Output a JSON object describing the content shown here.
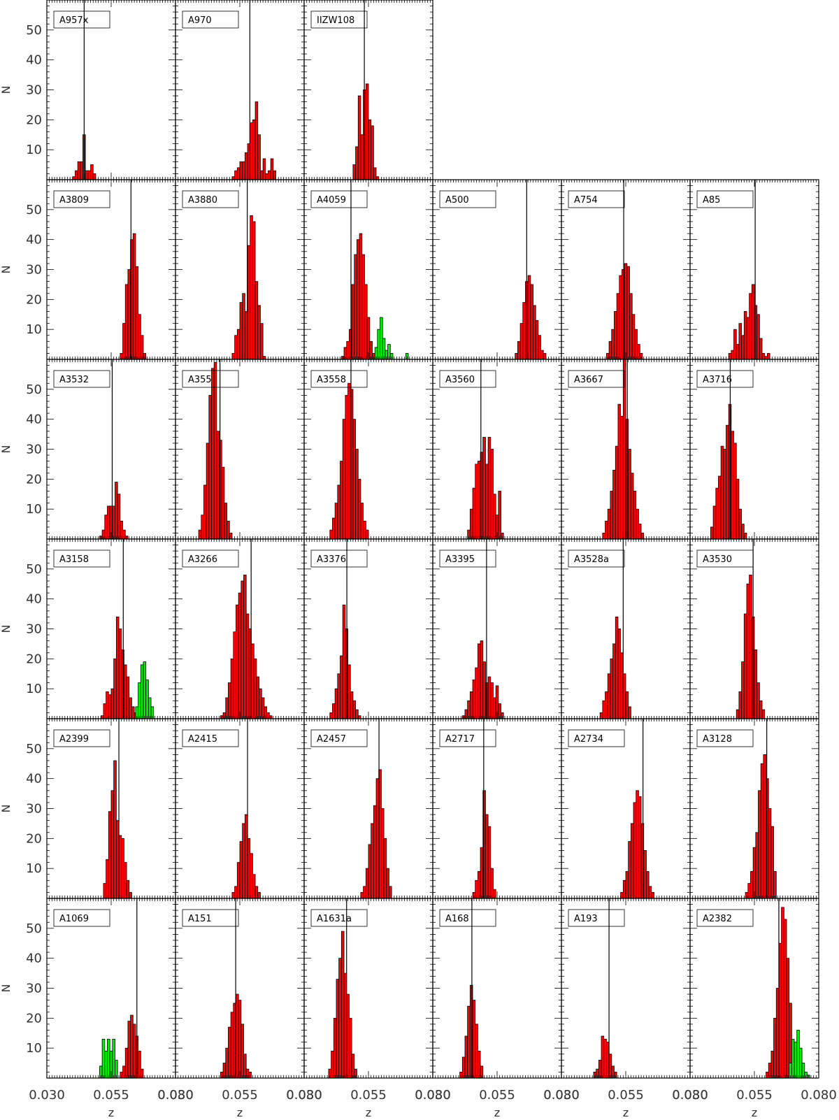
{
  "chart_data": {
    "type": "bar",
    "layout": "grid of histogram panels, 6 columns x 6 rows, shared axes",
    "xlabel": "z",
    "ylabel": "N",
    "xlim": [
      0.03,
      0.08
    ],
    "ylim": [
      0,
      60
    ],
    "bin_width": 0.001,
    "xticks": [
      0.03,
      0.055,
      0.08
    ],
    "yticks": [
      10,
      20,
      30,
      40,
      50
    ],
    "colors": {
      "main": "#ff0000",
      "secondary": "#00ee00",
      "edge": "#000000",
      "frame": "#000000"
    },
    "panels": [
      {
        "name": "A957x",
        "row": 0,
        "col": 0,
        "mean": 0.0445,
        "main": {
          "start": 0.04,
          "counts": [
            1,
            3,
            6,
            6,
            15,
            3,
            3,
            5,
            2
          ]
        }
      },
      {
        "name": "A970",
        "row": 0,
        "col": 1,
        "mean": 0.0589,
        "main": {
          "start": 0.052,
          "counts": [
            1,
            3,
            4,
            6,
            6,
            9,
            12,
            19,
            20,
            26,
            15,
            3,
            7,
            2,
            3,
            7,
            3
          ]
        }
      },
      {
        "name": "IIZW108",
        "row": 0,
        "col": 2,
        "mean": 0.0534,
        "main": {
          "start": 0.049,
          "counts": [
            5,
            11,
            28,
            15,
            30,
            32,
            20,
            18,
            4,
            1
          ]
        }
      },
      {
        "name": "A3809",
        "row": 1,
        "col": 0,
        "mean": 0.0627,
        "main": {
          "start": 0.0585,
          "counts": [
            2,
            12,
            25,
            30,
            40,
            42,
            31,
            15,
            8,
            2
          ]
        }
      },
      {
        "name": "A3880",
        "row": 1,
        "col": 1,
        "mean": 0.0579,
        "main": {
          "start": 0.052,
          "counts": [
            2,
            8,
            10,
            19,
            22,
            16,
            38,
            48,
            46,
            26,
            18,
            12,
            1
          ]
        }
      },
      {
        "name": "A4059",
        "row": 1,
        "col": 2,
        "mean": 0.0482,
        "main": {
          "start": 0.0445,
          "counts": [
            1,
            4,
            6,
            10,
            25,
            35,
            40,
            42,
            35,
            25,
            14,
            6,
            2
          ]
        },
        "secondary": {
          "start": 0.0575,
          "counts": [
            4,
            10,
            14,
            7,
            3,
            5,
            2,
            0,
            0,
            0,
            0,
            0,
            2
          ]
        }
      },
      {
        "name": "A500",
        "row": 1,
        "col": 3,
        "mean": 0.0665,
        "main": {
          "start": 0.062,
          "counts": [
            2,
            6,
            12,
            19,
            26,
            28,
            25,
            18,
            13,
            8,
            3,
            2
          ]
        }
      },
      {
        "name": "A754",
        "row": 1,
        "col": 4,
        "mean": 0.0542,
        "main": {
          "start": 0.0475,
          "counts": [
            2,
            6,
            10,
            16,
            22,
            28,
            30,
            32,
            31,
            22,
            15,
            10,
            5,
            2
          ]
        }
      },
      {
        "name": "A85",
        "row": 1,
        "col": 5,
        "mean": 0.0553,
        "main": {
          "start": 0.045,
          "counts": [
            2,
            3,
            10,
            5,
            12,
            8,
            16,
            14,
            22,
            25,
            18,
            15,
            7,
            2,
            1,
            2
          ]
        }
      }
    ],
    "panels_more": [
      {
        "name": "A3532",
        "row": 2,
        "col": 0,
        "mean": 0.0554,
        "main": {
          "start": 0.0505,
          "counts": [
            1,
            3,
            8,
            11,
            11,
            11,
            19,
            15,
            6,
            3,
            1
          ]
        }
      },
      {
        "name": "A3558",
        "row": 2,
        "col": 2,
        "mean": 0.0482,
        "main": {
          "start": 0.04,
          "counts": [
            3,
            7,
            12,
            18,
            26,
            40,
            48,
            52,
            50,
            40,
            30,
            20,
            12,
            6,
            3
          ]
        }
      },
      {
        "name": "A3560",
        "row": 2,
        "col": 3,
        "mean": 0.0487,
        "main": {
          "start": 0.0435,
          "counts": [
            3,
            10,
            17,
            25,
            26,
            29,
            34,
            25,
            34,
            30,
            15,
            8,
            16,
            2
          ]
        }
      },
      {
        "name": "A3667",
        "row": 2,
        "col": 4,
        "mean": 0.0556,
        "main": {
          "start": 0.046,
          "counts": [
            2,
            6,
            10,
            16,
            23,
            31,
            45,
            41,
            62,
            40,
            30,
            22,
            16,
            10,
            5,
            2
          ]
        }
      },
      {
        "name": "A3716",
        "row": 2,
        "col": 5,
        "mean": 0.0456,
        "main": {
          "start": 0.038,
          "counts": [
            4,
            11,
            17,
            21,
            31,
            30,
            38,
            45,
            36,
            32,
            20,
            10,
            5,
            2
          ]
        }
      },
      {
        "name": "A3158",
        "row": 3,
        "col": 0,
        "mean": 0.0597,
        "main": {
          "start": 0.051,
          "counts": [
            1,
            5,
            9,
            8,
            10,
            20,
            34,
            30,
            23,
            18,
            14,
            7,
            4,
            2
          ]
        },
        "secondary": {
          "start": 0.0645,
          "counts": [
            4,
            12,
            18,
            19,
            13,
            7,
            4
          ]
        }
      },
      {
        "name": "A3266",
        "row": 3,
        "col": 1,
        "mean": 0.0594,
        "main": {
          "start": 0.0475,
          "counts": [
            1,
            2,
            7,
            12,
            20,
            29,
            38,
            42,
            46,
            48,
            35,
            30,
            25,
            20,
            14,
            10,
            7,
            4,
            2,
            1
          ]
        }
      },
      {
        "name": "A3376",
        "row": 3,
        "col": 2,
        "mean": 0.0466,
        "main": {
          "start": 0.04,
          "counts": [
            2,
            5,
            10,
            15,
            21,
            38,
            30,
            18,
            9,
            6,
            3,
            1
          ]
        }
      },
      {
        "name": "A3395",
        "row": 3,
        "col": 3,
        "mean": 0.0509,
        "main": {
          "start": 0.0415,
          "counts": [
            1,
            3,
            6,
            9,
            13,
            17,
            25,
            26,
            19,
            12,
            14,
            12,
            7,
            11,
            5,
            2
          ]
        }
      },
      {
        "name": "A3528a",
        "row": 3,
        "col": 4,
        "mean": 0.054,
        "main": {
          "start": 0.045,
          "counts": [
            2,
            6,
            9,
            15,
            20,
            25,
            34,
            30,
            22,
            15,
            9,
            4
          ]
        }
      },
      {
        "name": "A3530",
        "row": 3,
        "col": 5,
        "mean": 0.0545,
        "main": {
          "start": 0.048,
          "counts": [
            3,
            9,
            19,
            35,
            45,
            48,
            34,
            23,
            12,
            6,
            3
          ]
        }
      },
      {
        "name": "A2399",
        "row": 4,
        "col": 0,
        "mean": 0.058,
        "main": {
          "start": 0.052,
          "counts": [
            5,
            13,
            29,
            36,
            46,
            26,
            21,
            20,
            12,
            6,
            2
          ]
        }
      },
      {
        "name": "A2415",
        "row": 4,
        "col": 1,
        "mean": 0.058,
        "main": {
          "start": 0.052,
          "counts": [
            2,
            4,
            12,
            19,
            25,
            28,
            20,
            15,
            8,
            4,
            2
          ]
        }
      },
      {
        "name": "A2457",
        "row": 4,
        "col": 2,
        "mean": 0.0591,
        "main": {
          "start": 0.052,
          "counts": [
            2,
            4,
            10,
            18,
            25,
            31,
            40,
            43,
            30,
            20,
            10,
            4
          ]
        }
      },
      {
        "name": "A2717",
        "row": 4,
        "col": 3,
        "mean": 0.0498,
        "main": {
          "start": 0.0455,
          "counts": [
            2,
            6,
            9,
            17,
            36,
            28,
            24,
            10,
            3
          ]
        }
      },
      {
        "name": "A2734",
        "row": 4,
        "col": 4,
        "mean": 0.0617,
        "main": {
          "start": 0.053,
          "counts": [
            2,
            6,
            9,
            19,
            25,
            32,
            36,
            34,
            25,
            16,
            9,
            4,
            2
          ]
        }
      },
      {
        "name": "A3128",
        "row": 4,
        "col": 5,
        "mean": 0.0598,
        "main": {
          "start": 0.0515,
          "counts": [
            2,
            5,
            9,
            17,
            22,
            36,
            45,
            48,
            40,
            30,
            24,
            9
          ]
        }
      },
      {
        "name": "A1069",
        "row": 5,
        "col": 0,
        "mean": 0.065,
        "main": {
          "start": 0.0585,
          "counts": [
            2,
            4,
            10,
            19,
            21,
            18,
            14,
            9,
            3
          ]
        },
        "secondary": {
          "start": 0.0505,
          "counts": [
            4,
            13,
            9,
            13,
            9,
            13,
            6
          ]
        }
      },
      {
        "name": "A151",
        "row": 5,
        "col": 1,
        "mean": 0.0534,
        "main": {
          "start": 0.0475,
          "counts": [
            2,
            5,
            10,
            17,
            22,
            25,
            28,
            26,
            18,
            8,
            3,
            2
          ]
        }
      },
      {
        "name": "A1631a",
        "row": 5,
        "col": 2,
        "mean": 0.0465,
        "main": {
          "start": 0.0395,
          "counts": [
            3,
            9,
            20,
            33,
            40,
            49,
            35,
            28,
            20,
            8,
            3
          ]
        }
      },
      {
        "name": "A168",
        "row": 5,
        "col": 3,
        "mean": 0.0452,
        "main": {
          "start": 0.0405,
          "counts": [
            2,
            7,
            14,
            24,
            31,
            26,
            18,
            9,
            4
          ]
        }
      },
      {
        "name": "A193",
        "row": 5,
        "col": 4,
        "mean": 0.0485,
        "main": {
          "start": 0.0425,
          "counts": [
            2,
            3,
            6,
            14,
            13,
            12,
            8,
            4,
            2
          ]
        }
      },
      {
        "name": "A2382",
        "row": 5,
        "col": 5,
        "mean": 0.0645,
        "main": {
          "start": 0.0595,
          "counts": [
            2,
            5,
            9,
            20,
            30,
            45,
            57,
            53,
            40,
            25,
            12,
            5,
            2
          ]
        },
        "secondary": {
          "start": 0.0685,
          "counts": [
            5,
            13,
            12,
            16,
            10,
            5,
            2,
            1
          ]
        }
      }
    ],
    "panels_extra": [
      {
        "name": "A3556",
        "label": "A355",
        "row": 2,
        "col": 1,
        "mean": 0.0473,
        "main": {
          "start": 0.039,
          "counts": [
            3,
            8,
            18,
            32,
            48,
            57,
            59,
            36,
            33,
            24,
            12,
            6,
            2
          ]
        }
      }
    ]
  }
}
